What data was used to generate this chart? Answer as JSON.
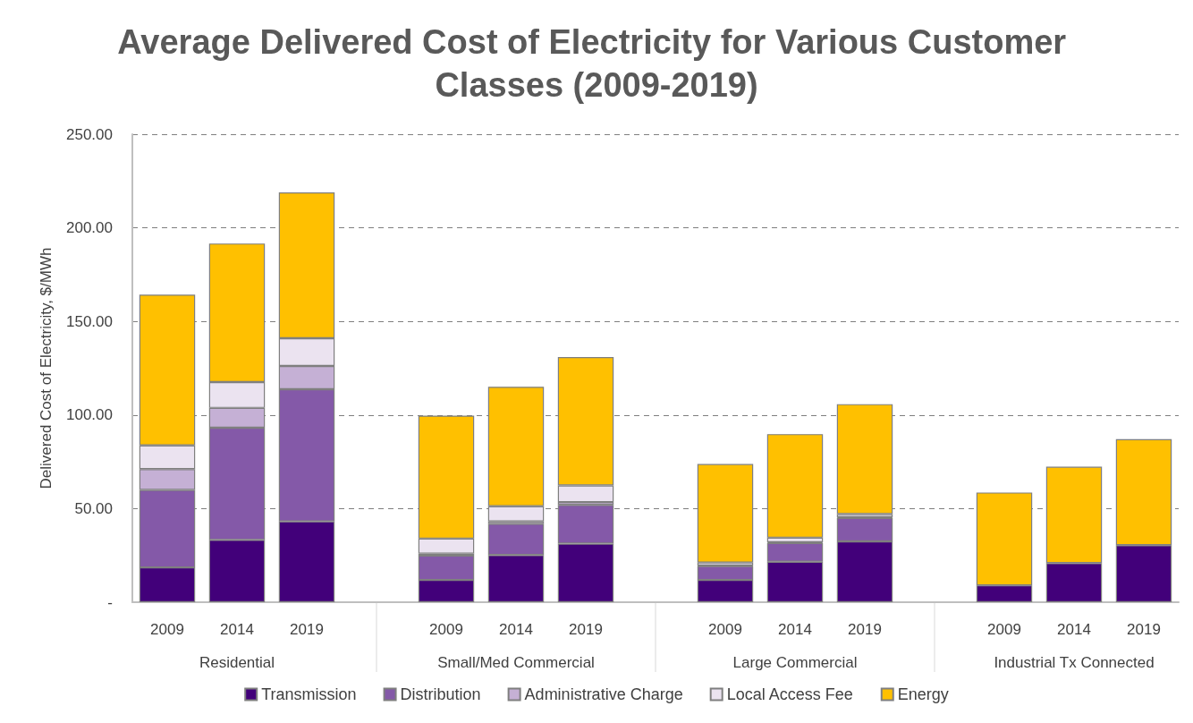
{
  "chart_data": {
    "type": "bar",
    "stacked": true,
    "title": "Average Delivered Cost of Electricity for Various Customer Classes (2009-2019)",
    "ylabel": "Delivered Cost of Electricity, $/MWh",
    "categories": [
      "2009",
      "2014",
      "2019",
      null,
      "2009",
      "2014",
      "2019",
      null,
      "2009",
      "2014",
      "2019",
      null,
      "2009",
      "2014",
      "2019"
    ],
    "annotations": [
      "Residential",
      "Small/Med Commercial",
      "Large Commercial",
      "Industrial Tx Connected"
    ],
    "series": [
      {
        "name": "Transmission",
        "color": "#42007a",
        "values": [
          18.6,
          33.3,
          43.2,
          null,
          11.9,
          25.2,
          31.3,
          null,
          11.9,
          21.6,
          32.5,
          null,
          9.0,
          20.9,
          30.5
        ]
      },
      {
        "name": "Distribution",
        "color": "#8459a8",
        "values": [
          41.4,
          59.9,
          70.6,
          null,
          13.0,
          16.7,
          20.7,
          null,
          7.4,
          10.0,
          12.5,
          null,
          null,
          null,
          null
        ]
      },
      {
        "name": "Administrative Charge",
        "color": "#c5b0d5",
        "values": [
          11.1,
          10.6,
          12.4,
          null,
          1.1,
          1.3,
          1.5,
          null,
          0.3,
          0.4,
          0.4,
          null,
          null,
          null,
          null
        ]
      },
      {
        "name": "Local Access Fee",
        "color": "#ebe3f0",
        "values": [
          12.7,
          13.8,
          14.8,
          null,
          8.0,
          8.1,
          8.9,
          null,
          1.6,
          2.5,
          1.7,
          null,
          null,
          null,
          null
        ]
      },
      {
        "name": "Energy",
        "color": "#ffc000",
        "values": [
          80.5,
          74.0,
          77.9,
          null,
          65.7,
          63.8,
          68.6,
          null,
          52.6,
          55.3,
          58.7,
          null,
          49.6,
          51.5,
          56.6
        ]
      }
    ],
    "ylim": [
      0,
      250
    ],
    "yticks": [
      {
        "value": 0,
        "label": "-"
      },
      {
        "value": 50,
        "label": "50.00"
      },
      {
        "value": 100,
        "label": "100.00"
      },
      {
        "value": 150,
        "label": "150.00"
      },
      {
        "value": 200,
        "label": "200.00"
      },
      {
        "value": 250,
        "label": "250.00"
      }
    ],
    "grid": "y",
    "legend": "bottom"
  }
}
